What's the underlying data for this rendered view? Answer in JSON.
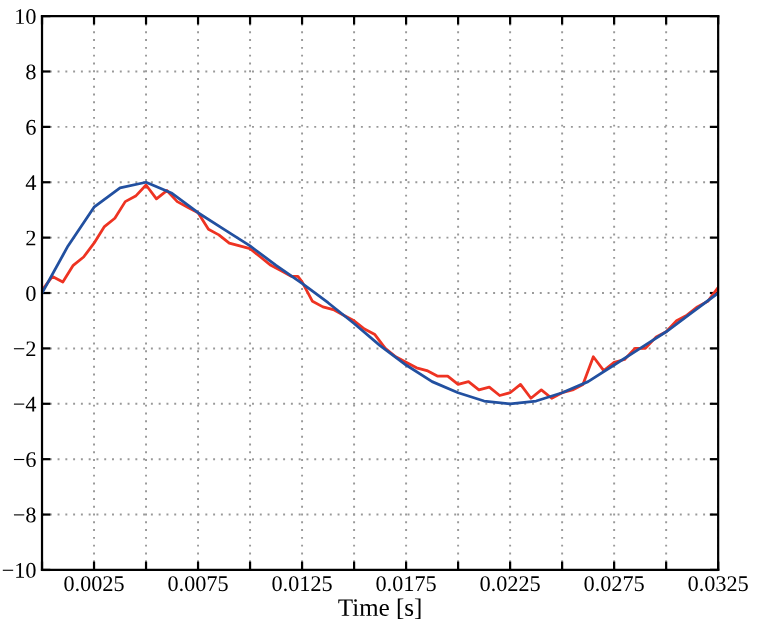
{
  "chart_data": {
    "type": "line",
    "xlabel": "Time [s]",
    "xlim": [
      0,
      0.0325
    ],
    "ylim": [
      -10,
      10
    ],
    "xticks": [
      {
        "value": 0,
        "label": null
      },
      0.0025,
      {
        "value": 0.005,
        "label": null
      },
      0.0075,
      {
        "value": 0.01,
        "label": null
      },
      0.0125,
      {
        "value": 0.015,
        "label": null
      },
      0.0175,
      {
        "value": 0.02,
        "label": null
      },
      0.0225,
      {
        "value": 0.025,
        "label": null
      },
      0.0275,
      {
        "value": 0.03,
        "label": null
      },
      0.0325
    ],
    "yticks": [
      {
        "value": -10,
        "label": "−10"
      },
      {
        "value": -8,
        "label": "−8"
      },
      {
        "value": -6,
        "label": "−6"
      },
      {
        "value": -4,
        "label": "−4"
      },
      {
        "value": -2,
        "label": "−2"
      },
      0,
      2,
      4,
      6,
      8,
      10
    ],
    "grid": true,
    "line_style": "solid",
    "marker": "none",
    "series": [
      {
        "color": "#ee3322",
        "x": [
          0,
          0.0005,
          0.001,
          0.0015,
          0.002,
          0.0025,
          0.003,
          0.0035,
          0.004,
          0.0045,
          0.005,
          0.0055,
          0.006,
          0.0065,
          0.007,
          0.0075,
          0.008,
          0.0085,
          0.009,
          0.0095,
          0.01,
          0.0105,
          0.011,
          0.0115,
          0.012,
          0.0123,
          0.0125,
          0.013,
          0.0135,
          0.014,
          0.0145,
          0.015,
          0.0155,
          0.016,
          0.0165,
          0.017,
          0.0175,
          0.018,
          0.0185,
          0.019,
          0.0195,
          0.02,
          0.0205,
          0.021,
          0.0215,
          0.022,
          0.0225,
          0.023,
          0.0235,
          0.024,
          0.0245,
          0.025,
          0.0255,
          0.026,
          0.0265,
          0.027,
          0.0275,
          0.028,
          0.0285,
          0.029,
          0.0295,
          0.03,
          0.0305,
          0.031,
          0.0315,
          0.032,
          0.0325
        ],
        "values": [
          0.1,
          0.6,
          0.4,
          1.0,
          1.3,
          1.8,
          2.4,
          2.7,
          3.3,
          3.5,
          3.9,
          3.4,
          3.7,
          3.3,
          3.1,
          2.9,
          2.3,
          2.1,
          1.8,
          1.7,
          1.6,
          1.3,
          1.0,
          0.8,
          0.6,
          0.6,
          0.4,
          -0.3,
          -0.5,
          -0.6,
          -0.8,
          -1.0,
          -1.3,
          -1.5,
          -2.0,
          -2.3,
          -2.5,
          -2.7,
          -2.8,
          -3.0,
          -3.0,
          -3.3,
          -3.2,
          -3.5,
          -3.4,
          -3.7,
          -3.6,
          -3.3,
          -3.8,
          -3.5,
          -3.8,
          -3.6,
          -3.5,
          -3.3,
          -2.3,
          -2.8,
          -2.5,
          -2.4,
          -2.0,
          -2.0,
          -1.6,
          -1.4,
          -1.0,
          -0.8,
          -0.5,
          -0.3,
          0.2
        ]
      },
      {
        "color": "#2250a0",
        "x": [
          0,
          0.00125,
          0.0025,
          0.00375,
          0.005,
          0.00625,
          0.0075,
          0.00875,
          0.01,
          0.01125,
          0.0125,
          0.01375,
          0.015,
          0.01625,
          0.0175,
          0.01875,
          0.02,
          0.02125,
          0.0225,
          0.02375,
          0.025,
          0.02625,
          0.0275,
          0.02875,
          0.03,
          0.03125,
          0.0325
        ],
        "values": [
          0,
          1.7,
          3.1,
          3.8,
          4.0,
          3.6,
          2.9,
          2.3,
          1.7,
          1.0,
          0.35,
          -0.35,
          -1.1,
          -1.9,
          -2.6,
          -3.2,
          -3.6,
          -3.9,
          -4.0,
          -3.9,
          -3.6,
          -3.2,
          -2.6,
          -2.0,
          -1.4,
          -0.7,
          0
        ]
      }
    ]
  }
}
